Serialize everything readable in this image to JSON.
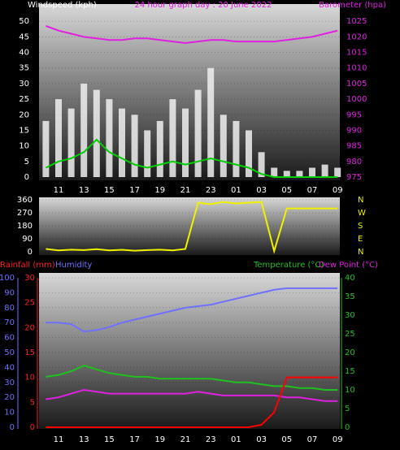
{
  "chart_data": [
    {
      "type": "bar",
      "title": "24 hour graph day : 20 June 2022",
      "y_label": "Windspeed (kph)",
      "y2_label": "Barometer (hpa)",
      "categories": [
        null,
        "11",
        null,
        "13",
        null,
        "15",
        null,
        "17",
        null,
        "19",
        null,
        "21",
        null,
        "23",
        null,
        "01",
        null,
        "03",
        null,
        "05",
        null,
        "07",
        null,
        "09"
      ],
      "ylim": [
        0,
        55
      ],
      "yticks": [
        0,
        5,
        10,
        15,
        20,
        25,
        30,
        35,
        40,
        45,
        50
      ],
      "y2lim": [
        975,
        1030
      ],
      "y2ticks": [
        975,
        980,
        985,
        990,
        995,
        1000,
        1005,
        1010,
        1015,
        1020,
        1025
      ],
      "series": [
        {
          "name": "Gust",
          "style": "bar",
          "color": "#f0f0f0",
          "values": [
            18,
            25,
            22,
            30,
            28,
            25,
            22,
            20,
            15,
            18,
            25,
            22,
            28,
            35,
            20,
            18,
            15,
            8,
            3,
            2,
            2,
            3,
            4,
            3
          ]
        },
        {
          "name": "Average",
          "style": "line",
          "color": "#00d000",
          "values": [
            3,
            5,
            6,
            8,
            12,
            8,
            6,
            4,
            3,
            4,
            5,
            4,
            5,
            6,
            5,
            4,
            3,
            1,
            0,
            0,
            0,
            0,
            0,
            0
          ]
        },
        {
          "name": "Barometer",
          "style": "line",
          "axis": "y2",
          "color": "#e020e0",
          "values": [
            1023.5,
            1022,
            1021,
            1020,
            1019.5,
            1019,
            1019,
            1019.5,
            1019.5,
            1019,
            1018.5,
            1018,
            1018.5,
            1019,
            1019,
            1018.5,
            1018.5,
            1018.5,
            1018.5,
            1019,
            1019.5,
            1020,
            1021,
            1022
          ]
        }
      ]
    },
    {
      "type": "line",
      "categories": [
        null,
        "11",
        null,
        "13",
        null,
        "15",
        null,
        "17",
        null,
        "19",
        null,
        "21",
        null,
        "23",
        null,
        "01",
        null,
        "03",
        null,
        "05",
        null,
        "07",
        null,
        "09"
      ],
      "ylim": [
        0,
        360
      ],
      "yticks": [
        0,
        90,
        180,
        270,
        360
      ],
      "direction_labels": [
        "N",
        "E",
        "S",
        "W",
        "N"
      ],
      "series": [
        {
          "name": "Direction",
          "style": "line",
          "color": "#f0f000",
          "values": [
            20,
            10,
            15,
            12,
            18,
            10,
            14,
            8,
            12,
            15,
            10,
            20,
            340,
            330,
            345,
            335,
            340,
            345,
            5,
            300,
            300,
            300,
            300,
            300
          ]
        }
      ]
    },
    {
      "type": "line",
      "y_label": "Humidity",
      "y3_label": "Rainfall (mm)",
      "y2_label": "Temperature (°C)",
      "y2b_label": "Dew Point (°C)",
      "categories": [
        null,
        "11",
        null,
        "13",
        null,
        "15",
        null,
        "17",
        null,
        "19",
        null,
        "21",
        null,
        "23",
        null,
        "01",
        null,
        "03",
        null,
        "05",
        null,
        "07",
        null,
        "09"
      ],
      "ylim": [
        0,
        100
      ],
      "yticks": [
        0,
        10,
        20,
        30,
        40,
        50,
        60,
        70,
        80,
        90,
        100
      ],
      "y3lim": [
        0,
        30
      ],
      "y3ticks": [
        0,
        5,
        10,
        15,
        20,
        25,
        30
      ],
      "y2lim": [
        0,
        40
      ],
      "y2ticks": [
        0,
        5,
        10,
        15,
        20,
        25,
        30,
        35,
        40
      ],
      "series": [
        {
          "name": "Humidity",
          "style": "line",
          "color": "#7070ff",
          "values": [
            70,
            70,
            69,
            64,
            65,
            67,
            70,
            72,
            74,
            76,
            78,
            80,
            81,
            82,
            84,
            86,
            88,
            90,
            92,
            93,
            93,
            93,
            93,
            93
          ]
        },
        {
          "name": "Temperature",
          "style": "line",
          "axis": "y2",
          "color": "#20c020",
          "values": [
            13.5,
            14,
            15,
            16.5,
            15.5,
            14.5,
            14,
            13.5,
            13.5,
            13,
            13,
            13,
            13,
            13,
            12.5,
            12,
            12,
            11.5,
            11,
            11,
            10.5,
            10.5,
            10,
            10
          ]
        },
        {
          "name": "Dew Point",
          "style": "line",
          "axis": "y2",
          "color": "#e020e0",
          "values": [
            7.5,
            8,
            9,
            10,
            9.5,
            9,
            9,
            9,
            9,
            9,
            9,
            9,
            9.5,
            9,
            8.5,
            8.5,
            8.5,
            8.5,
            8.5,
            8,
            8,
            7.5,
            7,
            7
          ]
        },
        {
          "name": "Rainfall",
          "style": "line",
          "axis": "y3",
          "color": "#ff0000",
          "values": [
            0,
            0,
            0,
            0,
            0,
            0,
            0,
            0,
            0,
            0,
            0,
            0,
            0,
            0,
            0,
            0,
            0,
            0.5,
            3,
            10,
            10,
            10,
            10,
            10
          ]
        }
      ]
    }
  ]
}
